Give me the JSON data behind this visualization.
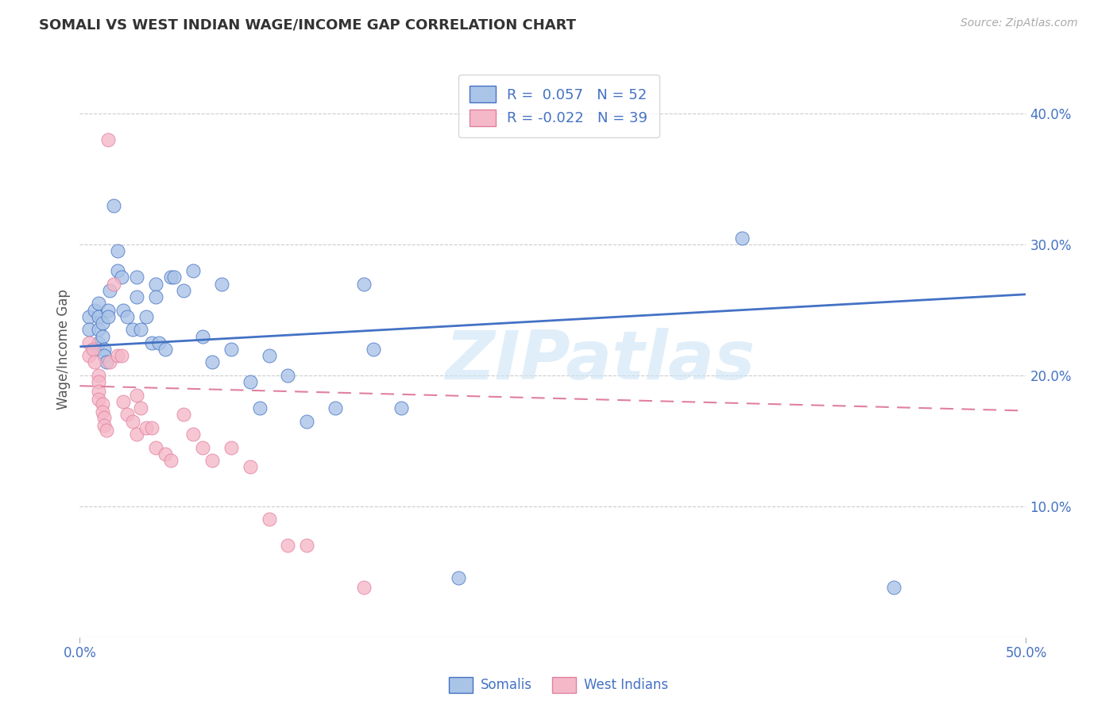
{
  "title": "SOMALI VS WEST INDIAN WAGE/INCOME GAP CORRELATION CHART",
  "source": "Source: ZipAtlas.com",
  "ylabel": "Wage/Income Gap",
  "xlim": [
    0.0,
    0.5
  ],
  "ylim": [
    0.0,
    0.44
  ],
  "y_ticks_right": [
    0.1,
    0.2,
    0.3,
    0.4
  ],
  "y_tick_labels_right": [
    "10.0%",
    "20.0%",
    "30.0%",
    "40.0%"
  ],
  "x_tick_positions": [
    0.0,
    0.5
  ],
  "x_tick_labels": [
    "0.0%",
    "50.0%"
  ],
  "grid_color": "#cccccc",
  "background_color": "#ffffff",
  "somali_color": "#aac4e8",
  "west_indian_color": "#f5b8c8",
  "somali_line_color": "#4472c4",
  "west_indian_line_color": "#e080a0",
  "legend_label1": "Somalis",
  "legend_label2": "West Indians",
  "watermark": "ZIPatlas",
  "somali_R": 0.057,
  "somali_N": 52,
  "west_indian_R": -0.022,
  "west_indian_N": 39,
  "somali_line_y0": 0.222,
  "somali_line_y1": 0.262,
  "west_indian_line_y0": 0.192,
  "west_indian_line_y1": 0.173,
  "somali_x": [
    0.005,
    0.005,
    0.008,
    0.008,
    0.01,
    0.01,
    0.01,
    0.01,
    0.012,
    0.012,
    0.013,
    0.013,
    0.014,
    0.015,
    0.015,
    0.016,
    0.018,
    0.02,
    0.02,
    0.022,
    0.023,
    0.025,
    0.028,
    0.03,
    0.03,
    0.032,
    0.035,
    0.038,
    0.04,
    0.04,
    0.042,
    0.045,
    0.048,
    0.05,
    0.055,
    0.06,
    0.065,
    0.07,
    0.075,
    0.08,
    0.09,
    0.095,
    0.1,
    0.11,
    0.12,
    0.135,
    0.15,
    0.155,
    0.17,
    0.2,
    0.35,
    0.43
  ],
  "somali_y": [
    0.245,
    0.235,
    0.25,
    0.22,
    0.255,
    0.245,
    0.235,
    0.225,
    0.24,
    0.23,
    0.22,
    0.215,
    0.21,
    0.25,
    0.245,
    0.265,
    0.33,
    0.295,
    0.28,
    0.275,
    0.25,
    0.245,
    0.235,
    0.275,
    0.26,
    0.235,
    0.245,
    0.225,
    0.27,
    0.26,
    0.225,
    0.22,
    0.275,
    0.275,
    0.265,
    0.28,
    0.23,
    0.21,
    0.27,
    0.22,
    0.195,
    0.175,
    0.215,
    0.2,
    0.165,
    0.175,
    0.27,
    0.22,
    0.175,
    0.045,
    0.305,
    0.038
  ],
  "west_indian_x": [
    0.005,
    0.005,
    0.007,
    0.008,
    0.01,
    0.01,
    0.01,
    0.01,
    0.012,
    0.012,
    0.013,
    0.013,
    0.014,
    0.015,
    0.016,
    0.018,
    0.02,
    0.022,
    0.023,
    0.025,
    0.028,
    0.03,
    0.03,
    0.032,
    0.035,
    0.038,
    0.04,
    0.045,
    0.048,
    0.055,
    0.06,
    0.065,
    0.07,
    0.08,
    0.09,
    0.1,
    0.11,
    0.12,
    0.15
  ],
  "west_indian_y": [
    0.225,
    0.215,
    0.22,
    0.21,
    0.2,
    0.195,
    0.188,
    0.182,
    0.178,
    0.172,
    0.168,
    0.162,
    0.158,
    0.38,
    0.21,
    0.27,
    0.215,
    0.215,
    0.18,
    0.17,
    0.165,
    0.185,
    0.155,
    0.175,
    0.16,
    0.16,
    0.145,
    0.14,
    0.135,
    0.17,
    0.155,
    0.145,
    0.135,
    0.145,
    0.13,
    0.09,
    0.07,
    0.07,
    0.038
  ]
}
